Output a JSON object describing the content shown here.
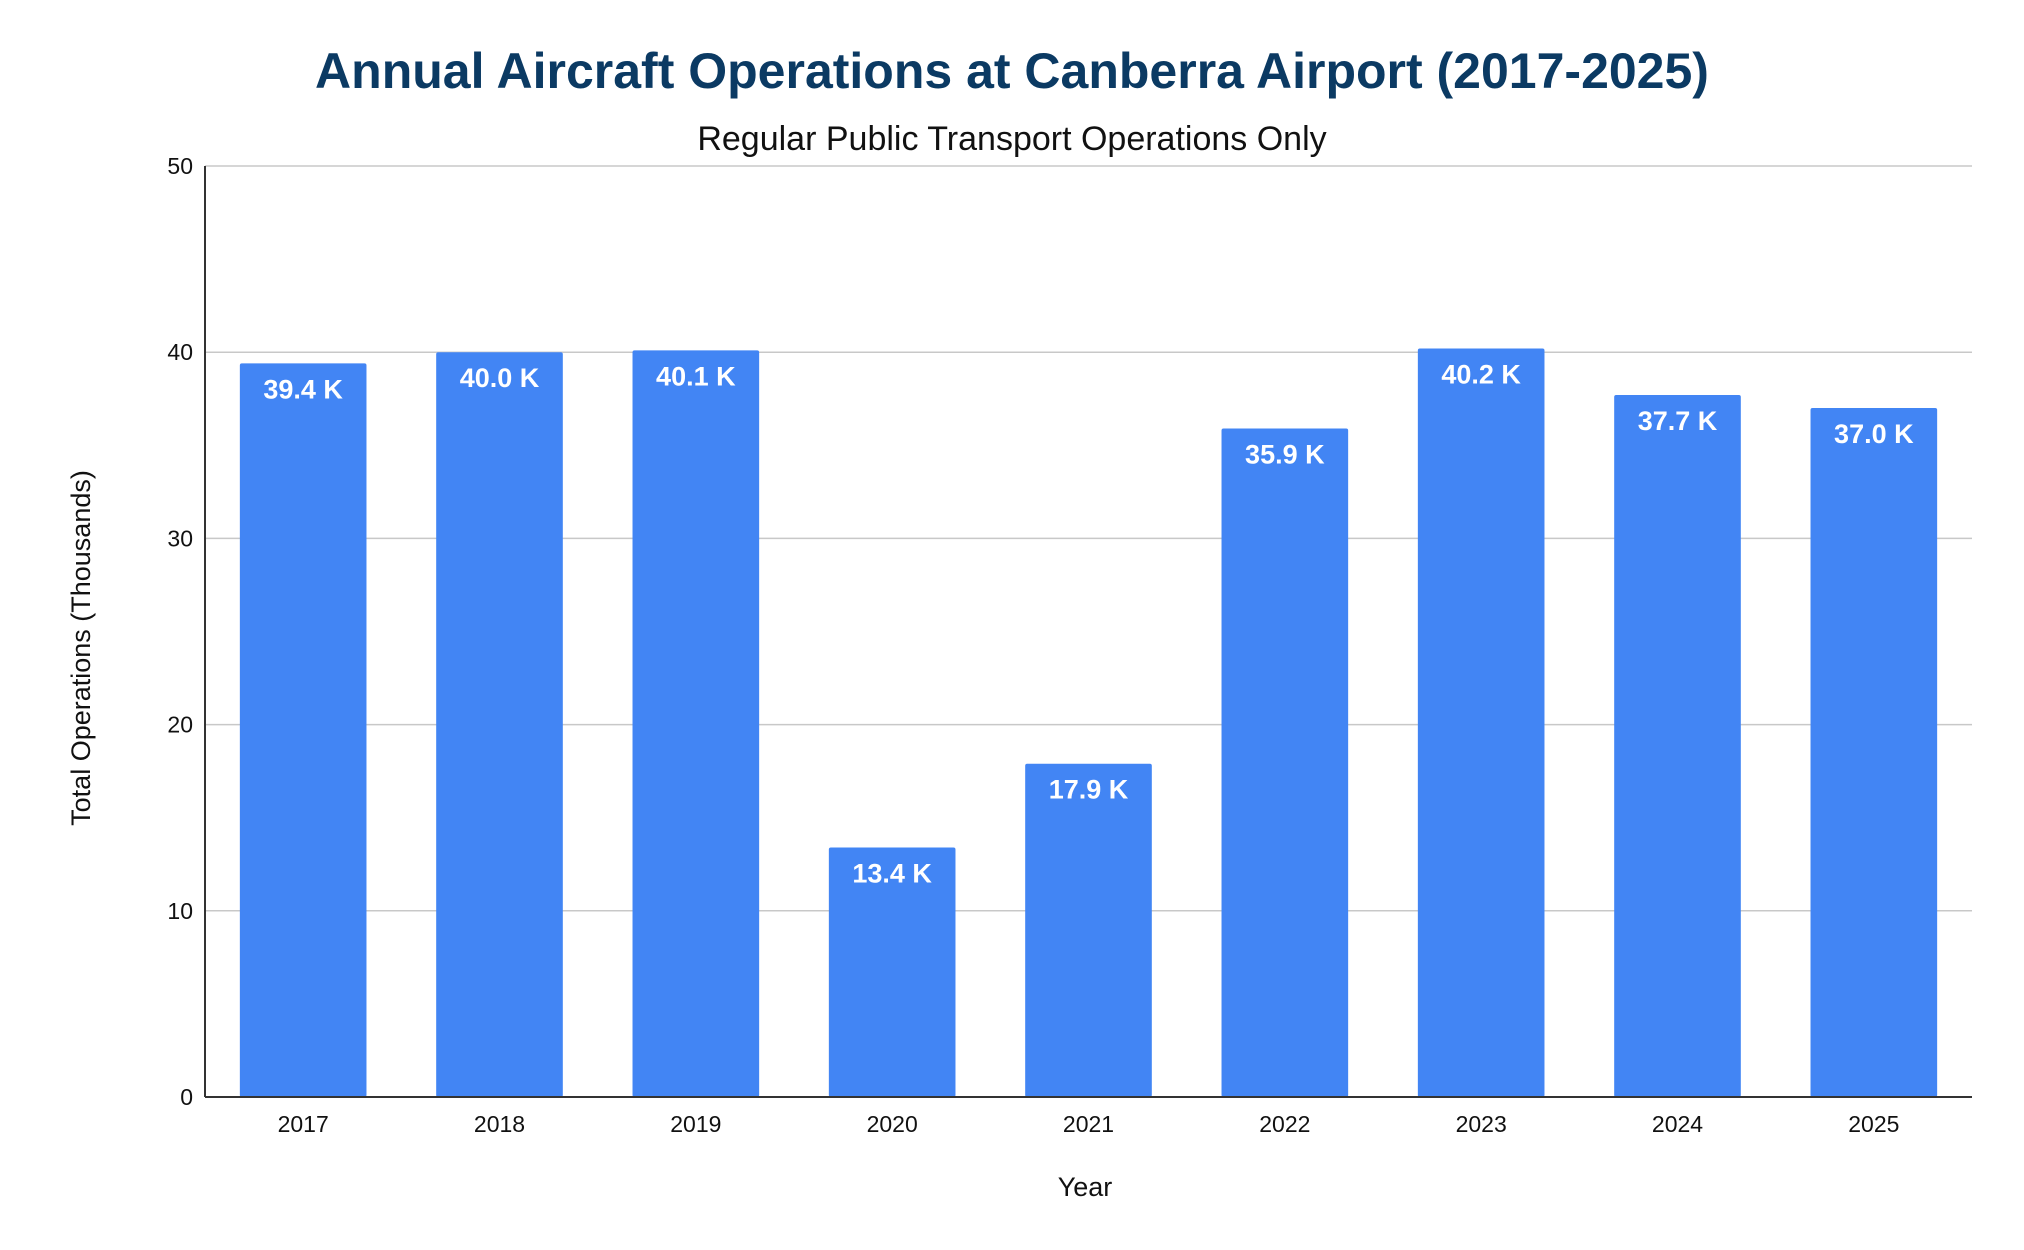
{
  "chart_data": {
    "type": "bar",
    "title": "Annual Aircraft Operations at Canberra Airport (2017-2025)",
    "subtitle": "Regular Public Transport Operations Only",
    "xlabel": "Year",
    "ylabel": "Total Operations (Thousands)",
    "categories": [
      "2017",
      "2018",
      "2019",
      "2020",
      "2021",
      "2022",
      "2023",
      "2024",
      "2025"
    ],
    "values": [
      39.4,
      40.0,
      40.1,
      13.4,
      17.9,
      35.9,
      40.2,
      37.7,
      37.0
    ],
    "data_labels": [
      "39.4 K",
      "40.0 K",
      "40.1 K",
      "13.4 K",
      "17.9 K",
      "35.9 K",
      "40.2 K",
      "37.7 K",
      "37.0 K"
    ],
    "ylim": [
      0,
      50
    ],
    "yticks": [
      0,
      10,
      20,
      30,
      40,
      50
    ],
    "grid": true,
    "legend": "none",
    "colors": {
      "bar": "#4285f4",
      "title": "#0b3a63",
      "data_label": "#ffffff"
    }
  }
}
